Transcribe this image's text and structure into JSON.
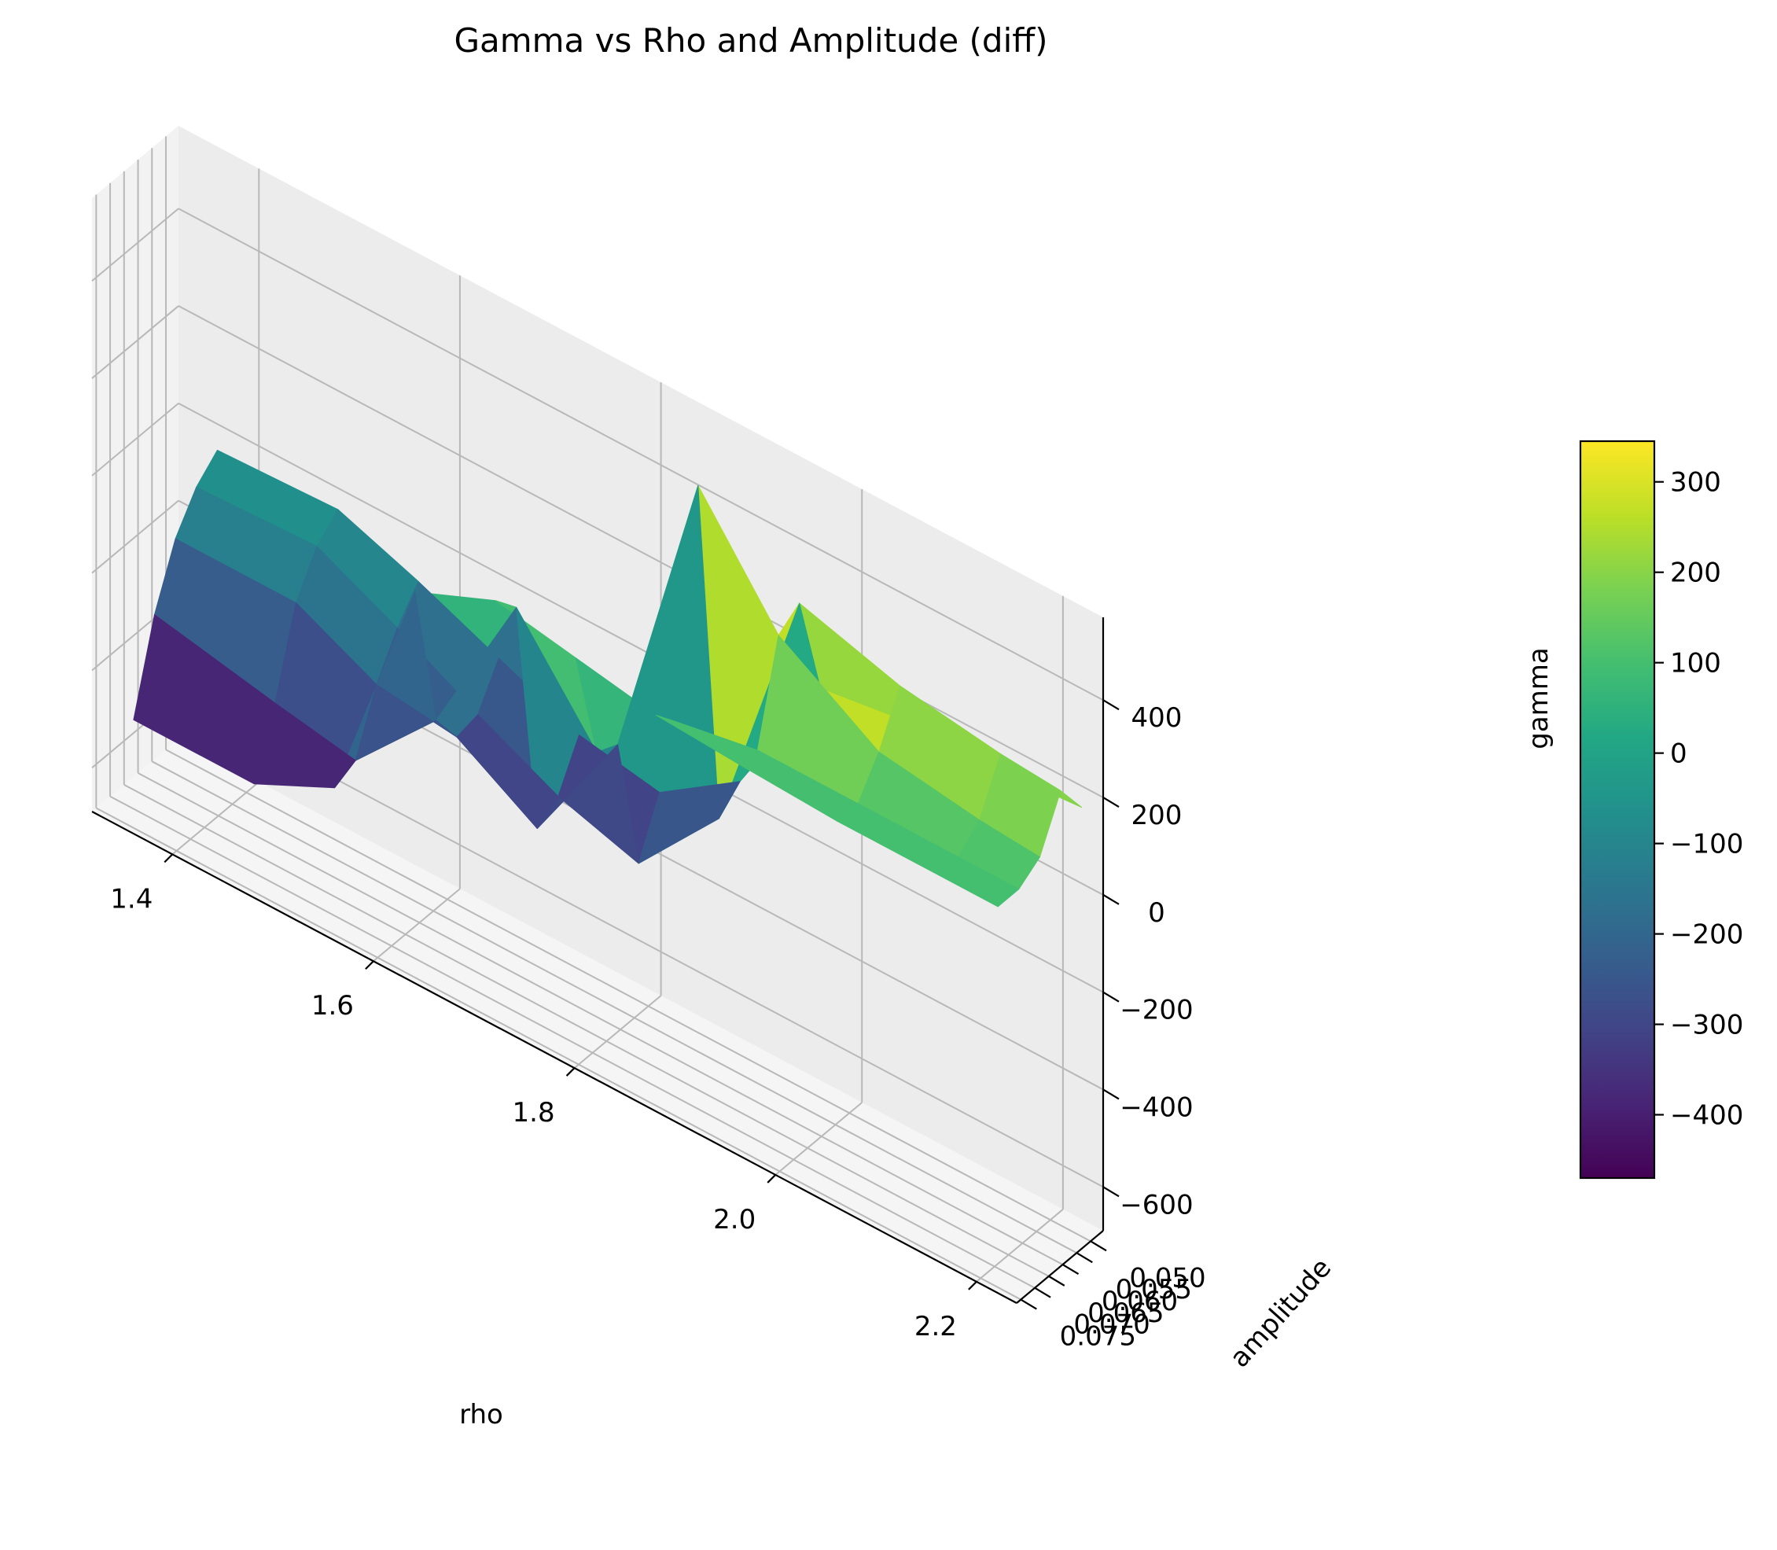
{
  "chart_data": {
    "type": "surface3d",
    "title": "Gamma vs Rho and Amplitude (diff)",
    "xlabel": "rho",
    "ylabel": "amplitude",
    "zlabel": "gamma",
    "xlim": [
      1.32,
      2.24
    ],
    "ylim": [
      0.0455,
      0.0765
    ],
    "zlim": [
      -690,
      570
    ],
    "x_ticks": [
      1.4,
      1.6,
      1.8,
      2.0,
      2.2
    ],
    "x_tick_labels": [
      "1.4",
      "1.6",
      "1.8",
      "2.0",
      "2.2"
    ],
    "y_ticks": [
      0.05,
      0.055,
      0.06,
      0.065,
      0.07,
      0.075
    ],
    "y_tick_labels": [
      "0.050",
      "0.055",
      "0.060",
      "0.065",
      "0.070",
      "0.075"
    ],
    "z_ticks": [
      -600,
      -400,
      -200,
      0,
      200,
      400
    ],
    "z_tick_labels": [
      "−600",
      "−400",
      "−200",
      "0",
      "200",
      "400"
    ],
    "colormap": "viridis",
    "color_range": [
      -470,
      345
    ],
    "colorbar_ticks": [
      -400,
      -300,
      -200,
      -100,
      0,
      100,
      200,
      300
    ],
    "colorbar_tick_labels": [
      "−400",
      "−300",
      "−200",
      "−100",
      "0",
      "100",
      "200",
      "300"
    ],
    "grid": true,
    "surface": {
      "rho": [
        1.36,
        1.48,
        1.56,
        1.64,
        1.72,
        1.8,
        1.88,
        1.96,
        2.06,
        2.16,
        2.22
      ],
      "amplitude": [
        0.046,
        0.0535,
        0.061,
        0.0685,
        0.076
      ],
      "gamma": [
        [
          -50,
          -40,
          -100,
          -170,
          -240,
          -270,
          -160,
          120,
          150,
          150,
          160
        ],
        [
          -90,
          -80,
          -160,
          -250,
          -330,
          -380,
          -200,
          330,
          270,
          240,
          230
        ],
        [
          -160,
          -160,
          -240,
          -260,
          -360,
          -100,
          520,
          300,
          170,
          140,
          130
        ],
        [
          -280,
          -330,
          -360,
          -190,
          130,
          -80,
          70,
          100,
          100,
          100,
          100
        ],
        [
          -460,
          -460,
          -380,
          110,
          180,
          150,
          120,
          110,
          100,
          100,
          100
        ]
      ]
    }
  }
}
